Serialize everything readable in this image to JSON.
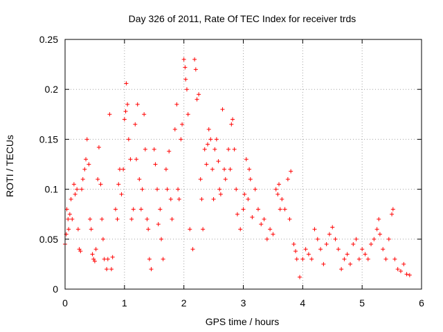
{
  "chart_data": {
    "type": "scatter",
    "title": "Day 326 of 2011, Rate Of TEC Index for receiver trds",
    "xlabel": "GPS time / hours",
    "ylabel": "ROTI / TECUs",
    "xlim": [
      0,
      6
    ],
    "ylim": [
      0,
      0.25
    ],
    "x_ticks": [
      0,
      1,
      2,
      3,
      4,
      5,
      6
    ],
    "x_tick_labels": [
      "0",
      "1",
      "2",
      "3",
      "4",
      "5",
      "6"
    ],
    "y_ticks": [
      0,
      0.05,
      0.1,
      0.15,
      0.2,
      0.25
    ],
    "y_tick_labels": [
      "0",
      "0.05",
      "0.1",
      "0.15",
      "0.2",
      "0.25"
    ],
    "grid": true,
    "marker": "plus",
    "color": "#ff0000",
    "series": [
      {
        "name": "ROTI",
        "points": [
          [
            0.0,
            0.045
          ],
          [
            0.02,
            0.055
          ],
          [
            0.03,
            0.08
          ],
          [
            0.05,
            0.07
          ],
          [
            0.06,
            0.06
          ],
          [
            0.08,
            0.075
          ],
          [
            0.1,
            0.09
          ],
          [
            0.12,
            0.07
          ],
          [
            0.15,
            0.105
          ],
          [
            0.17,
            0.095
          ],
          [
            0.2,
            0.1
          ],
          [
            0.22,
            0.06
          ],
          [
            0.24,
            0.04
          ],
          [
            0.26,
            0.038
          ],
          [
            0.28,
            0.1
          ],
          [
            0.3,
            0.11
          ],
          [
            0.33,
            0.12
          ],
          [
            0.35,
            0.13
          ],
          [
            0.37,
            0.15
          ],
          [
            0.4,
            0.125
          ],
          [
            0.42,
            0.07
          ],
          [
            0.44,
            0.06
          ],
          [
            0.46,
            0.035
          ],
          [
            0.48,
            0.03
          ],
          [
            0.5,
            0.028
          ],
          [
            0.52,
            0.04
          ],
          [
            0.55,
            0.11
          ],
          [
            0.57,
            0.142
          ],
          [
            0.6,
            0.105
          ],
          [
            0.62,
            0.07
          ],
          [
            0.64,
            0.05
          ],
          [
            0.66,
            0.03
          ],
          [
            0.7,
            0.02
          ],
          [
            0.72,
            0.03
          ],
          [
            0.75,
            0.175
          ],
          [
            0.78,
            0.02
          ],
          [
            0.8,
            0.032
          ],
          [
            0.85,
            0.08
          ],
          [
            0.88,
            0.07
          ],
          [
            0.9,
            0.105
          ],
          [
            0.92,
            0.12
          ],
          [
            0.95,
            0.095
          ],
          [
            0.98,
            0.12
          ],
          [
            1.0,
            0.17
          ],
          [
            1.02,
            0.178
          ],
          [
            1.03,
            0.206
          ],
          [
            1.05,
            0.185
          ],
          [
            1.07,
            0.15
          ],
          [
            1.1,
            0.13
          ],
          [
            1.12,
            0.07
          ],
          [
            1.15,
            0.08
          ],
          [
            1.18,
            0.165
          ],
          [
            1.2,
            0.13
          ],
          [
            1.22,
            0.185
          ],
          [
            1.25,
            0.11
          ],
          [
            1.28,
            0.08
          ],
          [
            1.3,
            0.1
          ],
          [
            1.33,
            0.175
          ],
          [
            1.35,
            0.14
          ],
          [
            1.38,
            0.07
          ],
          [
            1.4,
            0.06
          ],
          [
            1.42,
            0.03
          ],
          [
            1.45,
            0.02
          ],
          [
            1.5,
            0.14
          ],
          [
            1.52,
            0.125
          ],
          [
            1.55,
            0.1
          ],
          [
            1.57,
            0.065
          ],
          [
            1.6,
            0.08
          ],
          [
            1.62,
            0.05
          ],
          [
            1.65,
            0.03
          ],
          [
            1.7,
            0.12
          ],
          [
            1.72,
            0.1
          ],
          [
            1.75,
            0.138
          ],
          [
            1.78,
            0.09
          ],
          [
            1.8,
            0.07
          ],
          [
            1.85,
            0.16
          ],
          [
            1.88,
            0.185
          ],
          [
            1.9,
            0.1
          ],
          [
            1.92,
            0.09
          ],
          [
            1.95,
            0.15
          ],
          [
            1.97,
            0.165
          ],
          [
            2.0,
            0.23
          ],
          [
            2.02,
            0.222
          ],
          [
            2.03,
            0.21
          ],
          [
            2.05,
            0.2
          ],
          [
            2.07,
            0.175
          ],
          [
            2.1,
            0.06
          ],
          [
            2.15,
            0.04
          ],
          [
            2.18,
            0.23
          ],
          [
            2.2,
            0.22
          ],
          [
            2.22,
            0.19
          ],
          [
            2.25,
            0.195
          ],
          [
            2.28,
            0.11
          ],
          [
            2.3,
            0.09
          ],
          [
            2.32,
            0.06
          ],
          [
            2.35,
            0.14
          ],
          [
            2.38,
            0.125
          ],
          [
            2.4,
            0.145
          ],
          [
            2.42,
            0.16
          ],
          [
            2.45,
            0.15
          ],
          [
            2.48,
            0.12
          ],
          [
            2.5,
            0.09
          ],
          [
            2.52,
            0.14
          ],
          [
            2.55,
            0.15
          ],
          [
            2.58,
            0.128
          ],
          [
            2.6,
            0.1
          ],
          [
            2.62,
            0.095
          ],
          [
            2.65,
            0.18
          ],
          [
            2.68,
            0.12
          ],
          [
            2.7,
            0.11
          ],
          [
            2.75,
            0.14
          ],
          [
            2.78,
            0.12
          ],
          [
            2.8,
            0.165
          ],
          [
            2.82,
            0.17
          ],
          [
            2.85,
            0.14
          ],
          [
            2.88,
            0.1
          ],
          [
            2.9,
            0.075
          ],
          [
            2.95,
            0.06
          ],
          [
            3.0,
            0.08
          ],
          [
            3.02,
            0.095
          ],
          [
            3.05,
            0.13
          ],
          [
            3.08,
            0.09
          ],
          [
            3.1,
            0.12
          ],
          [
            3.12,
            0.11
          ],
          [
            3.15,
            0.072
          ],
          [
            3.2,
            0.1
          ],
          [
            3.25,
            0.08
          ],
          [
            3.3,
            0.065
          ],
          [
            3.35,
            0.07
          ],
          [
            3.4,
            0.05
          ],
          [
            3.45,
            0.06
          ],
          [
            3.5,
            0.055
          ],
          [
            3.55,
            0.1
          ],
          [
            3.58,
            0.095
          ],
          [
            3.6,
            0.105
          ],
          [
            3.62,
            0.08
          ],
          [
            3.65,
            0.09
          ],
          [
            3.7,
            0.08
          ],
          [
            3.75,
            0.11
          ],
          [
            3.78,
            0.07
          ],
          [
            3.8,
            0.118
          ],
          [
            3.85,
            0.045
          ],
          [
            3.88,
            0.038
          ],
          [
            3.9,
            0.03
          ],
          [
            3.95,
            0.012
          ],
          [
            4.0,
            0.03
          ],
          [
            4.05,
            0.04
          ],
          [
            4.1,
            0.035
          ],
          [
            4.15,
            0.03
          ],
          [
            4.2,
            0.06
          ],
          [
            4.25,
            0.05
          ],
          [
            4.3,
            0.04
          ],
          [
            4.35,
            0.025
          ],
          [
            4.4,
            0.045
          ],
          [
            4.45,
            0.055
          ],
          [
            4.5,
            0.062
          ],
          [
            4.55,
            0.05
          ],
          [
            4.6,
            0.04
          ],
          [
            4.65,
            0.02
          ],
          [
            4.7,
            0.03
          ],
          [
            4.75,
            0.035
          ],
          [
            4.8,
            0.025
          ],
          [
            4.85,
            0.045
          ],
          [
            4.9,
            0.05
          ],
          [
            4.95,
            0.03
          ],
          [
            5.0,
            0.04
          ],
          [
            5.05,
            0.035
          ],
          [
            5.1,
            0.03
          ],
          [
            5.15,
            0.045
          ],
          [
            5.2,
            0.05
          ],
          [
            5.25,
            0.06
          ],
          [
            5.28,
            0.07
          ],
          [
            5.3,
            0.055
          ],
          [
            5.35,
            0.04
          ],
          [
            5.4,
            0.03
          ],
          [
            5.45,
            0.05
          ],
          [
            5.5,
            0.075
          ],
          [
            5.52,
            0.08
          ],
          [
            5.55,
            0.03
          ],
          [
            5.6,
            0.02
          ],
          [
            5.65,
            0.018
          ],
          [
            5.7,
            0.025
          ],
          [
            5.75,
            0.015
          ],
          [
            5.8,
            0.014
          ]
        ]
      }
    ]
  }
}
